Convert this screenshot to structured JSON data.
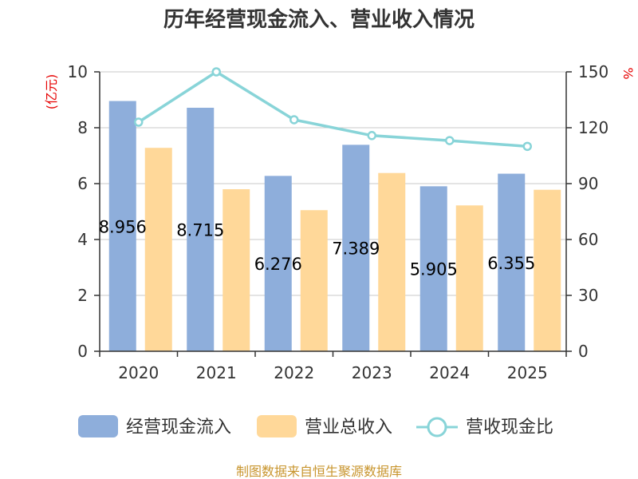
{
  "chart_data": {
    "type": "bar",
    "title": "历年经营现金流入、营业收入情况",
    "categories": [
      "2020",
      "2021",
      "2022",
      "2023",
      "2024",
      "2025"
    ],
    "series": [
      {
        "name": "经营现金流入",
        "type": "bar",
        "axis": "left",
        "color": "#8eaedb",
        "values": [
          8.956,
          8.715,
          6.276,
          7.389,
          5.905,
          6.355
        ],
        "labels": [
          "8.956",
          "8.715",
          "6.276",
          "7.389",
          "5.905",
          "6.355"
        ]
      },
      {
        "name": "营业总收入",
        "type": "bar",
        "axis": "left",
        "color": "#ffd899",
        "values": [
          7.28,
          5.8,
          5.05,
          6.38,
          5.22,
          5.78
        ]
      },
      {
        "name": "营收现金比",
        "type": "line",
        "axis": "right",
        "color": "#88d4d8",
        "values": [
          123,
          150,
          124.3,
          115.8,
          113.1,
          110
        ]
      }
    ],
    "y_left": {
      "unit": "(亿元)",
      "ylim": [
        0,
        10
      ],
      "ticks": [
        "0",
        "2",
        "4",
        "6",
        "8",
        "10"
      ]
    },
    "y_right": {
      "unit": "%",
      "ylim": [
        0,
        150
      ],
      "ticks": [
        "0",
        "30",
        "60",
        "90",
        "120",
        "150"
      ]
    },
    "grid": true,
    "legend_position": "bottom"
  },
  "source": "制图数据来自恒生聚源数据库"
}
